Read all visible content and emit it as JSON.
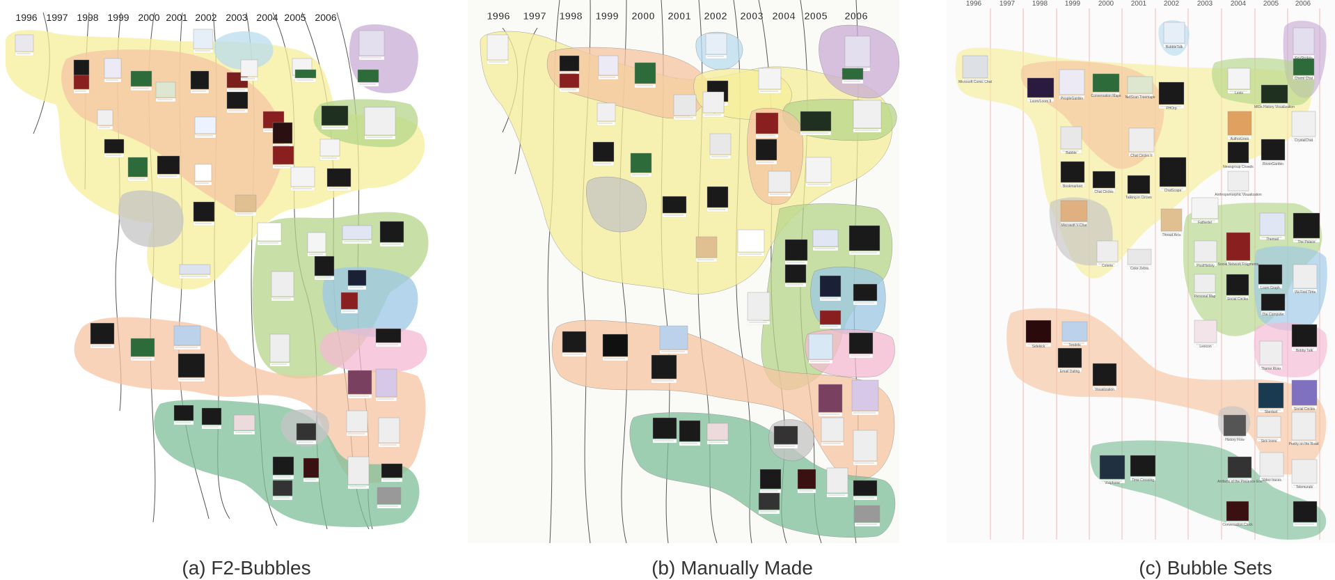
{
  "panels": [
    {
      "id": "a",
      "caption": "(a) F2-Bubbles",
      "years": [
        "1996",
        "1997",
        "1998",
        "1999",
        "2000",
        "2001",
        "2002",
        "2003",
        "2004",
        "2005",
        "2006"
      ]
    },
    {
      "id": "b",
      "caption": "(b) Manually Made",
      "years": [
        "1996",
        "1997",
        "1998",
        "1999",
        "2000",
        "2001",
        "2002",
        "2003",
        "2004",
        "2005",
        "2006"
      ]
    },
    {
      "id": "c",
      "caption": "(c) Bubble Sets",
      "years": [
        "1996",
        "1997",
        "1998",
        "1999",
        "2000",
        "2001",
        "2002",
        "2003",
        "2004",
        "2005",
        "2006"
      ]
    }
  ],
  "colors": {
    "yellow": "#f6ee9a",
    "peach": "#f6c4a2",
    "green": "#b5d58a",
    "teal": "#7fbf9a",
    "blue": "#9cc7e6",
    "purple": "#c9acd6",
    "pink": "#f4b9d2",
    "lightblue": "#b9dcef",
    "gray": "#c4c4c4"
  },
  "bubble_set_labels": [
    "Microsoft Comic Chat",
    "Loom/Loom II",
    "PeopleGarden",
    "Conversation Maps",
    "NetScan Treemaps",
    "PHOrp",
    "BubbleTalk",
    "Lexis",
    "MIDs History Visualization",
    "Chemi Chat",
    "KeyStrokes",
    "CrystalChat",
    "Babble",
    "AuthorLines",
    "Newsgroup Crowds",
    "RoverGarden",
    "Bookmarked",
    "Chat Circles",
    "Talking in Circles",
    "ChatScape",
    "Chat Circles II",
    "Anthropomorphic Visualization",
    "Fathertel",
    "Themail",
    "The Palace",
    "Microsoft V-Chat",
    "Coterie",
    "Coke Zebra",
    "Thread Arcs",
    "PostHistory",
    "Social Network Fragments",
    "Social Circles",
    "Personal Map",
    "Lexicon",
    "Via Feel Time",
    "Loom Graph",
    "The Computer",
    "Bobby Talk",
    "Theme River",
    "Sidekick",
    "Tendrils",
    "Email Dating",
    "Visualization",
    "Stardust",
    "Social Circles",
    "History Flow",
    "Sick Icons",
    "Poetry on the Road",
    "Visiphone",
    "Time Crossing",
    "Artifacts of the Presence Era",
    "Video traces",
    "Telemurals",
    "Conversation Clock"
  ]
}
